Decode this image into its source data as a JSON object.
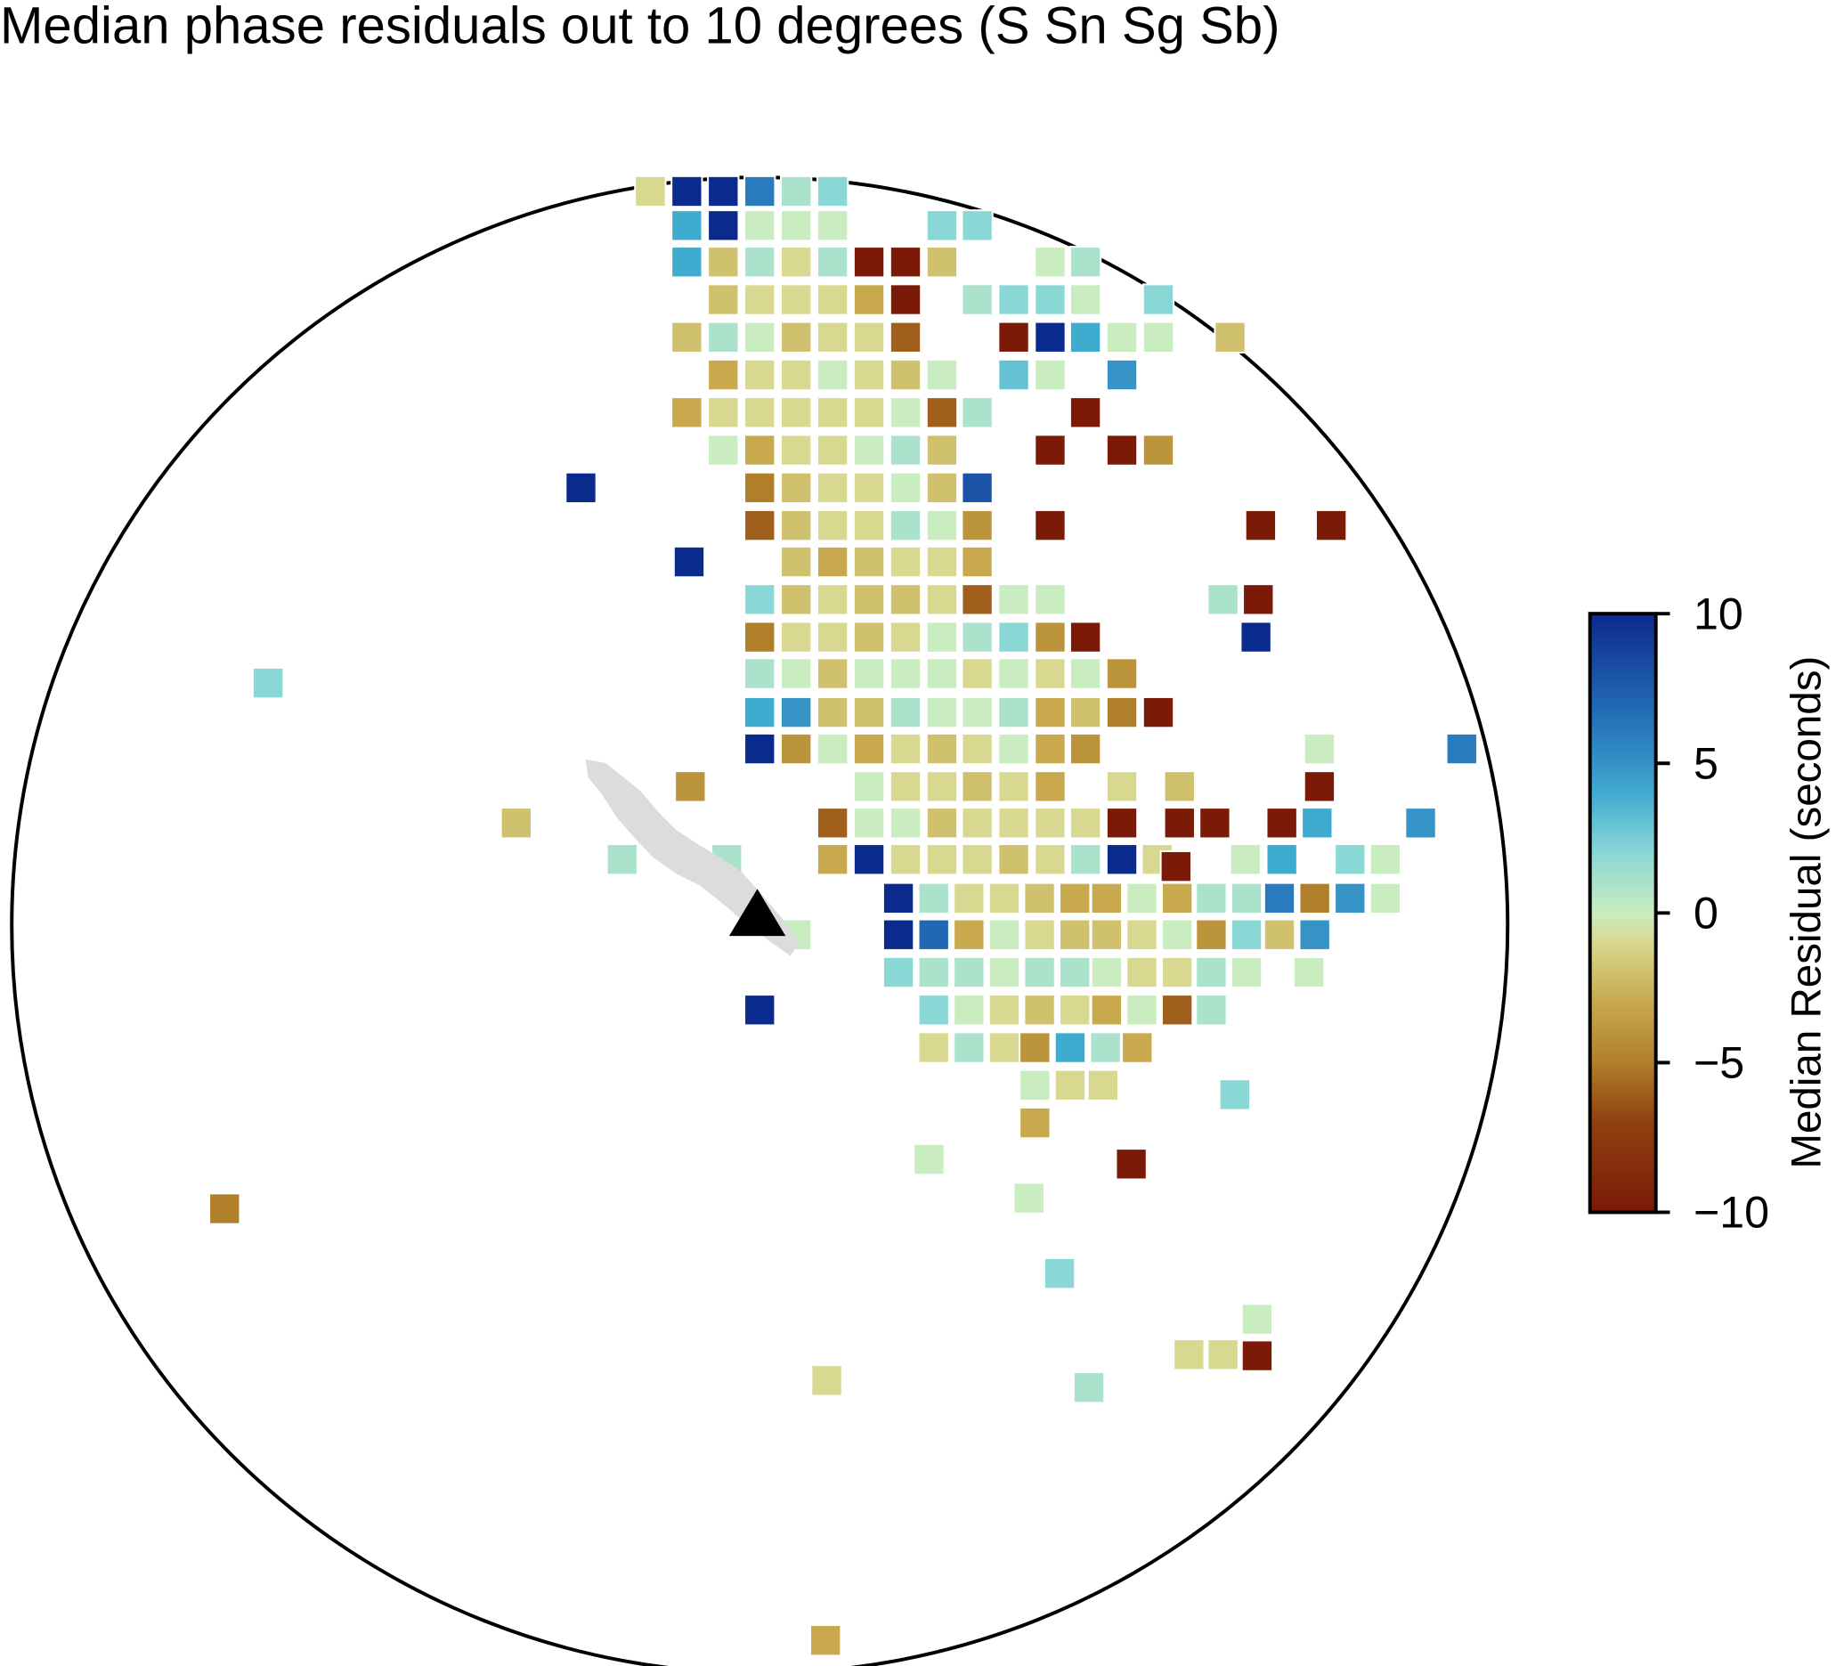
{
  "chart_data": {
    "type": "residual-map",
    "title": "Median phase residuals out to 10 degrees (S Sn Sg Sb)",
    "values": [
      -1,
      10,
      10,
      6,
      1,
      2,
      4,
      10,
      0,
      0,
      0,
      2,
      2,
      4,
      -2,
      1,
      -1,
      1,
      -10,
      -10,
      -2,
      0,
      1,
      -2,
      -1,
      -1,
      -1,
      -3,
      -10,
      1,
      2,
      2,
      0,
      2,
      -2,
      1,
      0,
      -2,
      -1,
      -1,
      -6,
      -10,
      10,
      4,
      0,
      0,
      -2,
      -3,
      -1,
      -1,
      0,
      -1,
      -2,
      0,
      3,
      0,
      5,
      -3,
      -1,
      -1,
      -1,
      -1,
      -1,
      0,
      -6,
      1,
      -10,
      0,
      -3,
      -1,
      -1,
      0,
      1,
      -2,
      -10,
      -10,
      -4,
      10,
      -5,
      -2,
      -1,
      -1,
      0,
      -2,
      8,
      -6,
      -2,
      -1,
      -1,
      1,
      0,
      -4,
      -10,
      -10,
      -10,
      10,
      -2,
      -3,
      -2,
      -1,
      -1,
      -3,
      2,
      -2,
      -1,
      -2,
      -2,
      -1,
      -6,
      0,
      0,
      1,
      -10,
      -5,
      -1,
      -1,
      -2,
      -1,
      0,
      1,
      2,
      -4,
      -10,
      10,
      1,
      0,
      -2,
      0,
      0,
      0,
      -1,
      0,
      -1,
      0,
      -4,
      4,
      5,
      -2,
      -2,
      1,
      0,
      0,
      1,
      -3,
      -2,
      -5,
      -10,
      10,
      -4,
      0,
      -3,
      -1,
      -2,
      -1,
      0,
      -3,
      -4,
      0,
      6,
      -4,
      0,
      -1,
      -1,
      -2,
      -1,
      -3,
      -1,
      -2,
      -10,
      -2,
      -6,
      0,
      0,
      -2,
      -1,
      -1,
      -1,
      -1,
      -10,
      -10,
      -10,
      -10,
      4,
      5,
      1,
      1,
      -3,
      10,
      -1,
      -1,
      -1,
      -2,
      -1,
      1,
      10,
      -1,
      0,
      4,
      2,
      0,
      10,
      1,
      -1,
      -1,
      -2,
      -3,
      -3,
      0,
      -3,
      1,
      1,
      6,
      -5,
      5,
      0,
      0,
      10,
      7,
      -3,
      0,
      -1,
      -2,
      -2,
      -1,
      0,
      -4,
      2,
      -2,
      5,
      2,
      1,
      1,
      0,
      1,
      1,
      0,
      -1,
      -1,
      1,
      0,
      0,
      10,
      2,
      0,
      -1,
      -2,
      -1,
      -3,
      0,
      -6,
      1,
      -1,
      1,
      -1,
      -4,
      4,
      1,
      -3,
      0,
      -1,
      -1,
      -10,
      2,
      -3,
      2,
      0,
      -10,
      -5,
      0,
      2,
      0,
      -1,
      -1,
      -10,
      -1,
      1,
      -3
    ],
    "colorbar": {
      "label": "Median Residual (seconds)",
      "clim": [
        -10,
        10
      ],
      "ticks": [
        10,
        5,
        0,
        {
          "value": -5,
          "label": "−5"
        },
        {
          "value": -10,
          "label": "−10"
        }
      ],
      "colorscale": [
        [
          -10,
          "#7a1a07"
        ],
        [
          -7,
          "#8f3f10"
        ],
        [
          -5,
          "#b07f2a"
        ],
        [
          -3,
          "#c8a94d"
        ],
        [
          -1,
          "#d8d890"
        ],
        [
          0,
          "#c9ecc0"
        ],
        [
          2,
          "#8ad8d6"
        ],
        [
          4,
          "#3fabcf"
        ],
        [
          6,
          "#2a7bbd"
        ],
        [
          10,
          "#0b2a8e"
        ]
      ]
    }
  }
}
